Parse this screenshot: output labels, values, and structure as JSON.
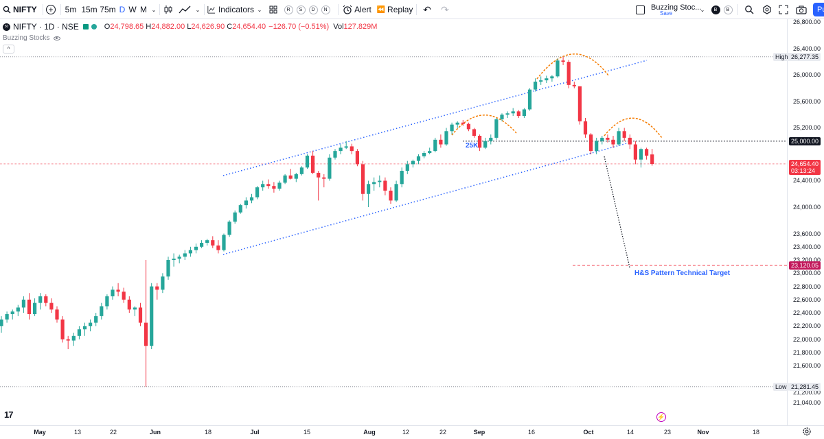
{
  "toolbar": {
    "symbol": "NIFTY",
    "intervals": [
      "5m",
      "15m",
      "75m",
      "D",
      "W",
      "M"
    ],
    "active_interval": "D",
    "indicators_label": "Indicators",
    "alert_label": "Alert",
    "replay_label": "Replay",
    "session_buttons": [
      "R",
      "S",
      "D",
      "N"
    ],
    "layout_name": "Buzzing Stoc...",
    "layout_save": "Save",
    "account_buttons": [
      "B",
      "B"
    ],
    "publish_label": "Pu"
  },
  "legend": {
    "title": "NIFTY · 1D · NSE",
    "open_label": "O",
    "open": "24,798.65",
    "high_label": "H",
    "high": "24,882.00",
    "low_label": "L",
    "low": "24,626.90",
    "close_label": "C",
    "close": "24,654.40",
    "change": "−126.70 (−0.51%)",
    "vol_label": "Vol",
    "volume": "127.829M",
    "indicator": "Buzzing Stocks",
    "collapse": "^"
  },
  "price_axis": {
    "ticks": [
      "26,800.00",
      "26,400.00",
      "26,000.00",
      "25,600.00",
      "25,200.00",
      "24,400.00",
      "24,000.00",
      "23,600.00",
      "23,400.00",
      "23,200.00",
      "23,000.00",
      "22,800.00",
      "22,600.00",
      "22,400.00",
      "22,200.00",
      "22,000.00",
      "21,800.00",
      "21,600.00",
      "21,200.00",
      "21,040.00"
    ],
    "high_label": "High",
    "high_value": "26,277.35",
    "low_label": "Low",
    "low_value": "21,281.45",
    "level_25k": "25,000.00",
    "last_price": "24,654.40",
    "countdown": "03:13:24",
    "target_price": "23,120.05"
  },
  "time_axis": {
    "labels": [
      "May",
      "13",
      "22",
      "Jun",
      "18",
      "Jul",
      "15",
      "Aug",
      "12",
      "22",
      "Sep",
      "16",
      "Oct",
      "14",
      "23",
      "Nov",
      "18"
    ],
    "bold_labels": [
      "May",
      "Jun",
      "Jul",
      "Aug",
      "Sep",
      "Oct",
      "Nov"
    ]
  },
  "annotations": {
    "level_label": "25K",
    "target_label": "H&S Pattern Technical Target"
  },
  "colors": {
    "up": "#26a69a",
    "down": "#f23645",
    "trend": "#2962ff",
    "hs_arc": "#f57c00",
    "accent": "#2962ff",
    "target_tag": "#c2185b"
  },
  "chart_data": {
    "type": "candlestick",
    "title": "NIFTY · 1D · NSE",
    "ylim": [
      21040,
      26900
    ],
    "series": [
      {
        "values": [
          [
            22200,
            22350,
            22100,
            22300
          ],
          [
            22300,
            22420,
            22250,
            22380
          ],
          [
            22380,
            22450,
            22300,
            22420
          ],
          [
            22420,
            22520,
            22350,
            22480
          ],
          [
            22480,
            22650,
            22400,
            22600
          ],
          [
            22600,
            22700,
            22300,
            22380
          ],
          [
            22380,
            22620,
            22350,
            22550
          ],
          [
            22550,
            22700,
            22450,
            22650
          ],
          [
            22650,
            22680,
            22500,
            22550
          ],
          [
            22550,
            22620,
            22400,
            22450
          ],
          [
            22450,
            22500,
            22250,
            22300
          ],
          [
            22300,
            22350,
            21950,
            22000
          ],
          [
            22000,
            22050,
            21850,
            21980
          ],
          [
            21980,
            22100,
            21900,
            22050
          ],
          [
            22050,
            22200,
            22000,
            22150
          ],
          [
            22150,
            22250,
            22050,
            22200
          ],
          [
            22200,
            22300,
            22120,
            22250
          ],
          [
            22250,
            22400,
            22200,
            22350
          ],
          [
            22350,
            22550,
            22300,
            22500
          ],
          [
            22500,
            22680,
            22450,
            22650
          ],
          [
            22650,
            22800,
            22600,
            22750
          ],
          [
            22750,
            22850,
            22650,
            22720
          ],
          [
            22720,
            22780,
            22550,
            22600
          ],
          [
            22600,
            22650,
            22400,
            22450
          ],
          [
            22450,
            22500,
            22350,
            22480
          ],
          [
            22480,
            22550,
            22200,
            22250
          ],
          [
            22250,
            23200,
            21281,
            21900
          ],
          [
            21900,
            22850,
            21850,
            22800
          ],
          [
            22800,
            22850,
            22600,
            22750
          ],
          [
            22750,
            23000,
            22700,
            22950
          ],
          [
            22950,
            23250,
            22900,
            23200
          ],
          [
            23200,
            23300,
            23100,
            23220
          ],
          [
            23220,
            23280,
            23150,
            23250
          ],
          [
            23250,
            23350,
            23200,
            23300
          ],
          [
            23300,
            23400,
            23250,
            23350
          ],
          [
            23350,
            23450,
            23300,
            23400
          ],
          [
            23400,
            23500,
            23380,
            23460
          ],
          [
            23460,
            23520,
            23420,
            23500
          ],
          [
            23500,
            23560,
            23380,
            23420
          ],
          [
            23420,
            23500,
            23300,
            23350
          ],
          [
            23350,
            23600,
            23330,
            23580
          ],
          [
            23580,
            23800,
            23550,
            23780
          ],
          [
            23780,
            23950,
            23750,
            23920
          ],
          [
            23920,
            24050,
            23900,
            24030
          ],
          [
            24030,
            24150,
            23980,
            24100
          ],
          [
            24100,
            24200,
            24060,
            24150
          ],
          [
            24150,
            24320,
            24120,
            24300
          ],
          [
            24300,
            24400,
            24250,
            24350
          ],
          [
            24350,
            24420,
            24280,
            24320
          ],
          [
            24320,
            24380,
            24220,
            24280
          ],
          [
            24280,
            24400,
            24250,
            24370
          ],
          [
            24370,
            24500,
            24350,
            24480
          ],
          [
            24480,
            24580,
            24420,
            24430
          ],
          [
            24430,
            24520,
            24380,
            24500
          ],
          [
            24500,
            24620,
            24480,
            24600
          ],
          [
            24600,
            24800,
            24580,
            24780
          ],
          [
            24780,
            24850,
            24500,
            24520
          ],
          [
            24520,
            24550,
            24100,
            24450
          ],
          [
            24450,
            24500,
            24300,
            24430
          ],
          [
            24430,
            24800,
            24400,
            24750
          ],
          [
            24750,
            24880,
            24720,
            24850
          ],
          [
            24850,
            24950,
            24800,
            24900
          ],
          [
            24900,
            25000,
            24880,
            24920
          ],
          [
            24920,
            24960,
            24800,
            24850
          ],
          [
            24850,
            24880,
            24620,
            24650
          ],
          [
            24650,
            24700,
            24100,
            24200
          ],
          [
            24200,
            24400,
            24000,
            24350
          ],
          [
            24350,
            24450,
            24250,
            24380
          ],
          [
            24380,
            24480,
            24300,
            24400
          ],
          [
            24400,
            24450,
            24180,
            24250
          ],
          [
            24250,
            24300,
            24050,
            24100
          ],
          [
            24100,
            24400,
            24080,
            24350
          ],
          [
            24350,
            24600,
            24300,
            24550
          ],
          [
            24550,
            24700,
            24500,
            24650
          ],
          [
            24650,
            24720,
            24600,
            24700
          ],
          [
            24700,
            24800,
            24650,
            24770
          ],
          [
            24770,
            24850,
            24740,
            24820
          ],
          [
            24820,
            24900,
            24800,
            24850
          ],
          [
            24850,
            25050,
            24830,
            25020
          ],
          [
            25020,
            25100,
            24900,
            24950
          ],
          [
            24950,
            25200,
            24930,
            25150
          ],
          [
            25150,
            25280,
            25100,
            25250
          ],
          [
            25250,
            25300,
            25200,
            25280
          ],
          [
            25280,
            25320,
            25230,
            25260
          ],
          [
            25260,
            25280,
            25150,
            25180
          ],
          [
            25180,
            25200,
            25050,
            25080
          ],
          [
            25080,
            25100,
            24850,
            24900
          ],
          [
            24900,
            25050,
            24880,
            25000
          ],
          [
            25000,
            25100,
            24950,
            25050
          ],
          [
            25050,
            25350,
            25020,
            25330
          ],
          [
            25330,
            25420,
            25300,
            25400
          ],
          [
            25400,
            25450,
            25350,
            25420
          ],
          [
            25420,
            25500,
            25380,
            25450
          ],
          [
            25450,
            25470,
            25350,
            25380
          ],
          [
            25380,
            25500,
            25350,
            25480
          ],
          [
            25480,
            25800,
            25460,
            25780
          ],
          [
            25780,
            25950,
            25750,
            25900
          ],
          [
            25900,
            25980,
            25850,
            25920
          ],
          [
            25920,
            25990,
            25880,
            25950
          ],
          [
            25950,
            26000,
            25900,
            25980
          ],
          [
            25980,
            26250,
            25960,
            26220
          ],
          [
            26220,
            26277,
            26150,
            26200
          ],
          [
            26200,
            26230,
            25800,
            25850
          ],
          [
            25850,
            25900,
            25800,
            25830
          ],
          [
            25830,
            25650,
            25250,
            25300
          ],
          [
            25300,
            25350,
            25050,
            25100
          ],
          [
            25100,
            25120,
            24800,
            24850
          ],
          [
            24850,
            25050,
            24800,
            25000
          ],
          [
            25000,
            25080,
            24950,
            25050
          ],
          [
            25050,
            25100,
            24980,
            25020
          ],
          [
            25020,
            25080,
            24900,
            24950
          ],
          [
            24950,
            25200,
            24930,
            25150
          ],
          [
            25150,
            25200,
            25000,
            25050
          ],
          [
            25050,
            25100,
            24880,
            24950
          ],
          [
            24950,
            25000,
            24650,
            24720
          ],
          [
            24720,
            24900,
            24600,
            24880
          ],
          [
            24880,
            24900,
            24720,
            24780
          ],
          [
            24798,
            24882,
            24627,
            24654
          ]
        ]
      }
    ]
  }
}
